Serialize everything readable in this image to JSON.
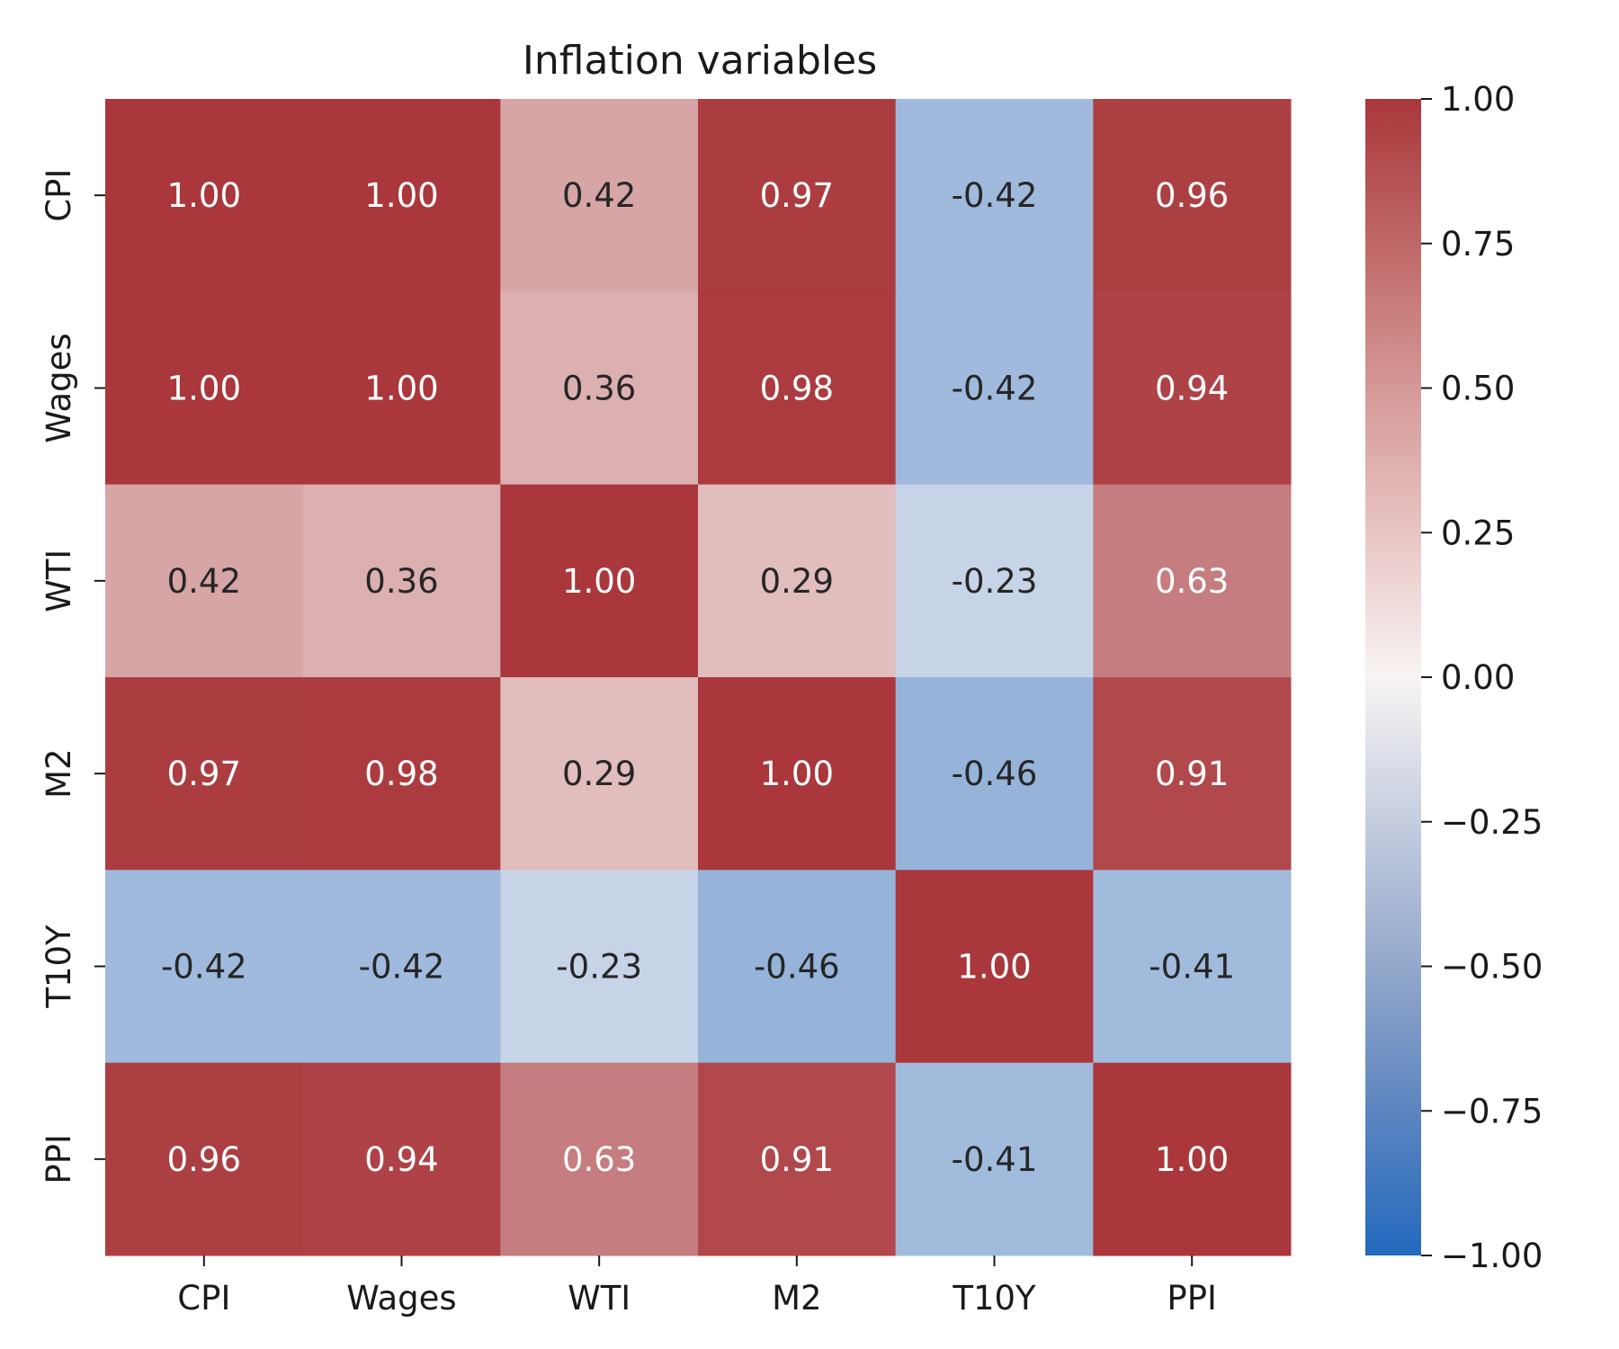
{
  "chart_data": {
    "type": "heatmap",
    "title": "Inflation variables",
    "rows": [
      "CPI",
      "Wages",
      "WTI",
      "M2",
      "T10Y",
      "PPI"
    ],
    "columns": [
      "CPI",
      "Wages",
      "WTI",
      "M2",
      "T10Y",
      "PPI"
    ],
    "values": [
      [
        1.0,
        1.0,
        0.42,
        0.97,
        -0.42,
        0.96
      ],
      [
        1.0,
        1.0,
        0.36,
        0.98,
        -0.42,
        0.94
      ],
      [
        0.42,
        0.36,
        1.0,
        0.29,
        -0.23,
        0.63
      ],
      [
        0.97,
        0.98,
        0.29,
        1.0,
        -0.46,
        0.91
      ],
      [
        -0.42,
        -0.42,
        -0.23,
        -0.46,
        1.0,
        -0.41
      ],
      [
        0.96,
        0.94,
        0.63,
        0.91,
        -0.41,
        1.0
      ]
    ],
    "cell_labels": [
      [
        "1.00",
        "1.00",
        "0.42",
        "0.97",
        "-0.42",
        "0.96"
      ],
      [
        "1.00",
        "1.00",
        "0.36",
        "0.98",
        "-0.42",
        "0.94"
      ],
      [
        "0.42",
        "0.36",
        "1.00",
        "0.29",
        "-0.23",
        "0.63"
      ],
      [
        "0.97",
        "0.98",
        "0.29",
        "1.00",
        "-0.46",
        "0.91"
      ],
      [
        "-0.42",
        "-0.42",
        "-0.23",
        "-0.46",
        "1.00",
        "-0.41"
      ],
      [
        "0.96",
        "0.94",
        "0.63",
        "0.91",
        "-0.41",
        "1.00"
      ]
    ],
    "colorbar": {
      "vmin": -1.0,
      "vmax": 1.0,
      "ticks": [
        1.0,
        0.75,
        0.5,
        0.25,
        0.0,
        -0.25,
        -0.5,
        -0.75,
        -1.0
      ],
      "tick_labels": [
        "1.00",
        "0.75",
        "0.50",
        "0.25",
        "0.00",
        "−0.25",
        "−0.50",
        "−0.75",
        "−1.00"
      ],
      "colormap": "vlag",
      "colors": {
        "low": "#2369bd",
        "mid": "#f8f4f3",
        "high": "#a9373b"
      }
    },
    "grid": false,
    "legend": "colorbar-right"
  }
}
